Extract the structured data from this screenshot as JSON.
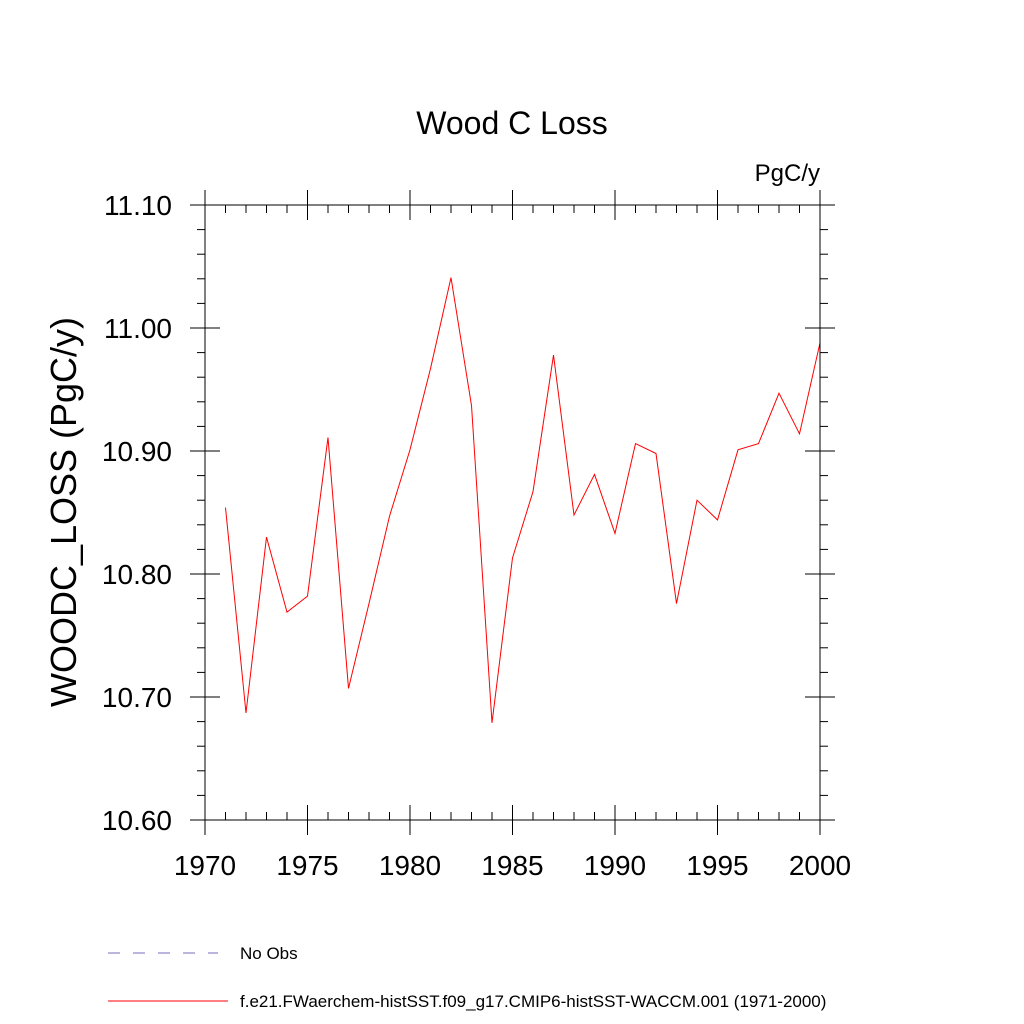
{
  "chart_data": {
    "type": "line",
    "title": "Wood C Loss",
    "units": "PgC/y",
    "ylabel": "WOODC_LOSS  (PgC/y)",
    "xlabel": "",
    "xlim": [
      1970,
      2000
    ],
    "ylim": [
      10.6,
      11.1
    ],
    "x_ticks": [
      1970,
      1975,
      1980,
      1985,
      1990,
      1995,
      2000
    ],
    "x_tick_labels": [
      "1970",
      "1975",
      "1980",
      "1985",
      "1990",
      "1995",
      "2000"
    ],
    "y_ticks": [
      10.6,
      10.7,
      10.8,
      10.9,
      11.0,
      11.1
    ],
    "y_tick_labels": [
      "10.60",
      "10.70",
      "10.80",
      "10.90",
      "11.00",
      "11.10"
    ],
    "grid": false,
    "legend_position": "bottom-left",
    "series": [
      {
        "name": "f.e21.FWaerchem-histSST.f09_g17.CMIP6-histSST-WACCM.001 (1971-2000)",
        "color": "#ff0000",
        "style": "solid",
        "x": [
          1971,
          1972,
          1973,
          1974,
          1975,
          1976,
          1977,
          1978,
          1979,
          1980,
          1981,
          1982,
          1983,
          1984,
          1985,
          1986,
          1987,
          1988,
          1989,
          1990,
          1991,
          1992,
          1993,
          1994,
          1995,
          1996,
          1997,
          1998,
          1999,
          2000
        ],
        "values": [
          10.854,
          10.687,
          10.83,
          10.769,
          10.782,
          10.911,
          10.707,
          10.776,
          10.847,
          10.901,
          10.967,
          11.041,
          10.937,
          10.679,
          10.813,
          10.867,
          10.978,
          10.848,
          10.881,
          10.833,
          10.906,
          10.898,
          10.776,
          10.86,
          10.844,
          10.901,
          10.906,
          10.947,
          10.914,
          10.988
        ]
      }
    ],
    "legend": [
      {
        "label": "No Obs",
        "color": "#7b68c0",
        "style": "dashed"
      },
      {
        "label": "f.e21.FWaerchem-histSST.f09_g17.CMIP6-histSST-WACCM.001 (1971-2000)",
        "color": "#ff0000",
        "style": "solid"
      }
    ]
  }
}
